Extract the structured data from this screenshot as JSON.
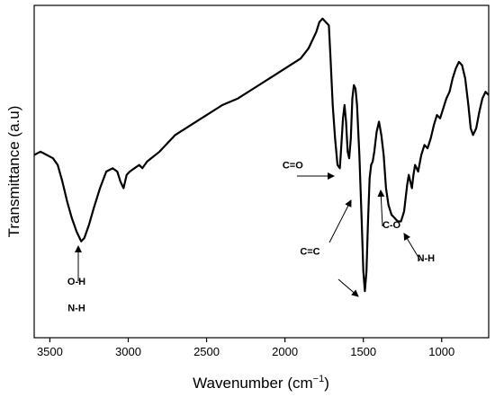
{
  "chart_data": {
    "type": "line",
    "xlabel": "Wavenumber (cm",
    "xlabel_sup": "−1",
    "xlabel_close": ")",
    "ylabel": "Transmittance (a.u)",
    "xlim": [
      3600,
      700
    ],
    "x_reversed": true,
    "x_ticks": [
      3500,
      3000,
      2500,
      2000,
      1500,
      1000
    ],
    "y_ticks_shown": false,
    "grid": false,
    "legend": "none",
    "series": [
      {
        "color": "#000000",
        "points": [
          [
            3600,
            0.55
          ],
          [
            3560,
            0.56
          ],
          [
            3520,
            0.55
          ],
          [
            3480,
            0.54
          ],
          [
            3450,
            0.52
          ],
          [
            3420,
            0.47
          ],
          [
            3390,
            0.41
          ],
          [
            3360,
            0.36
          ],
          [
            3330,
            0.32
          ],
          [
            3300,
            0.29
          ],
          [
            3280,
            0.3
          ],
          [
            3250,
            0.34
          ],
          [
            3220,
            0.39
          ],
          [
            3180,
            0.45
          ],
          [
            3140,
            0.5
          ],
          [
            3100,
            0.51
          ],
          [
            3070,
            0.5
          ],
          [
            3050,
            0.47
          ],
          [
            3030,
            0.45
          ],
          [
            3010,
            0.49
          ],
          [
            2990,
            0.5
          ],
          [
            2960,
            0.51
          ],
          [
            2930,
            0.52
          ],
          [
            2910,
            0.51
          ],
          [
            2880,
            0.53
          ],
          [
            2800,
            0.56
          ],
          [
            2700,
            0.61
          ],
          [
            2600,
            0.64
          ],
          [
            2500,
            0.67
          ],
          [
            2400,
            0.7
          ],
          [
            2300,
            0.72
          ],
          [
            2200,
            0.75
          ],
          [
            2100,
            0.78
          ],
          [
            2000,
            0.81
          ],
          [
            1900,
            0.84
          ],
          [
            1850,
            0.87
          ],
          [
            1800,
            0.92
          ],
          [
            1780,
            0.95
          ],
          [
            1760,
            0.96
          ],
          [
            1740,
            0.95
          ],
          [
            1720,
            0.94
          ],
          [
            1710,
            0.85
          ],
          [
            1695,
            0.7
          ],
          [
            1680,
            0.6
          ],
          [
            1665,
            0.52
          ],
          [
            1650,
            0.51
          ],
          [
            1640,
            0.58
          ],
          [
            1630,
            0.66
          ],
          [
            1620,
            0.7
          ],
          [
            1610,
            0.65
          ],
          [
            1600,
            0.56
          ],
          [
            1590,
            0.54
          ],
          [
            1580,
            0.6
          ],
          [
            1570,
            0.72
          ],
          [
            1560,
            0.76
          ],
          [
            1550,
            0.75
          ],
          [
            1540,
            0.7
          ],
          [
            1525,
            0.55
          ],
          [
            1510,
            0.35
          ],
          [
            1500,
            0.2
          ],
          [
            1490,
            0.14
          ],
          [
            1480,
            0.2
          ],
          [
            1470,
            0.35
          ],
          [
            1460,
            0.48
          ],
          [
            1450,
            0.52
          ],
          [
            1440,
            0.53
          ],
          [
            1430,
            0.56
          ],
          [
            1415,
            0.62
          ],
          [
            1400,
            0.65
          ],
          [
            1385,
            0.61
          ],
          [
            1370,
            0.55
          ],
          [
            1355,
            0.45
          ],
          [
            1340,
            0.4
          ],
          [
            1320,
            0.37
          ],
          [
            1300,
            0.36
          ],
          [
            1280,
            0.35
          ],
          [
            1260,
            0.35
          ],
          [
            1240,
            0.38
          ],
          [
            1220,
            0.46
          ],
          [
            1210,
            0.49
          ],
          [
            1200,
            0.47
          ],
          [
            1190,
            0.45
          ],
          [
            1180,
            0.49
          ],
          [
            1170,
            0.52
          ],
          [
            1150,
            0.5
          ],
          [
            1130,
            0.55
          ],
          [
            1110,
            0.58
          ],
          [
            1090,
            0.57
          ],
          [
            1070,
            0.6
          ],
          [
            1050,
            0.64
          ],
          [
            1030,
            0.67
          ],
          [
            1010,
            0.66
          ],
          [
            990,
            0.69
          ],
          [
            970,
            0.72
          ],
          [
            950,
            0.74
          ],
          [
            930,
            0.78
          ],
          [
            910,
            0.81
          ],
          [
            890,
            0.83
          ],
          [
            870,
            0.82
          ],
          [
            850,
            0.78
          ],
          [
            830,
            0.7
          ],
          [
            815,
            0.63
          ],
          [
            800,
            0.61
          ],
          [
            780,
            0.63
          ],
          [
            760,
            0.68
          ],
          [
            740,
            0.72
          ],
          [
            720,
            0.74
          ],
          [
            700,
            0.73
          ]
        ]
      }
    ],
    "annotations": [
      {
        "id": "oh",
        "text": "O-H",
        "x": 3330,
        "y": 0.16
      },
      {
        "id": "nh-left",
        "text": "N-H",
        "x": 3330,
        "y": 0.08
      },
      {
        "id": "co-double",
        "text": "C=O",
        "x": 1950,
        "y": 0.51
      },
      {
        "id": "cc",
        "text": "C=C",
        "x": 1840,
        "y": 0.25
      },
      {
        "id": "co-single",
        "text": "C-O",
        "x": 1320,
        "y": 0.33
      },
      {
        "id": "nh-right",
        "text": "N-H",
        "x": 1100,
        "y": 0.23
      }
    ]
  }
}
